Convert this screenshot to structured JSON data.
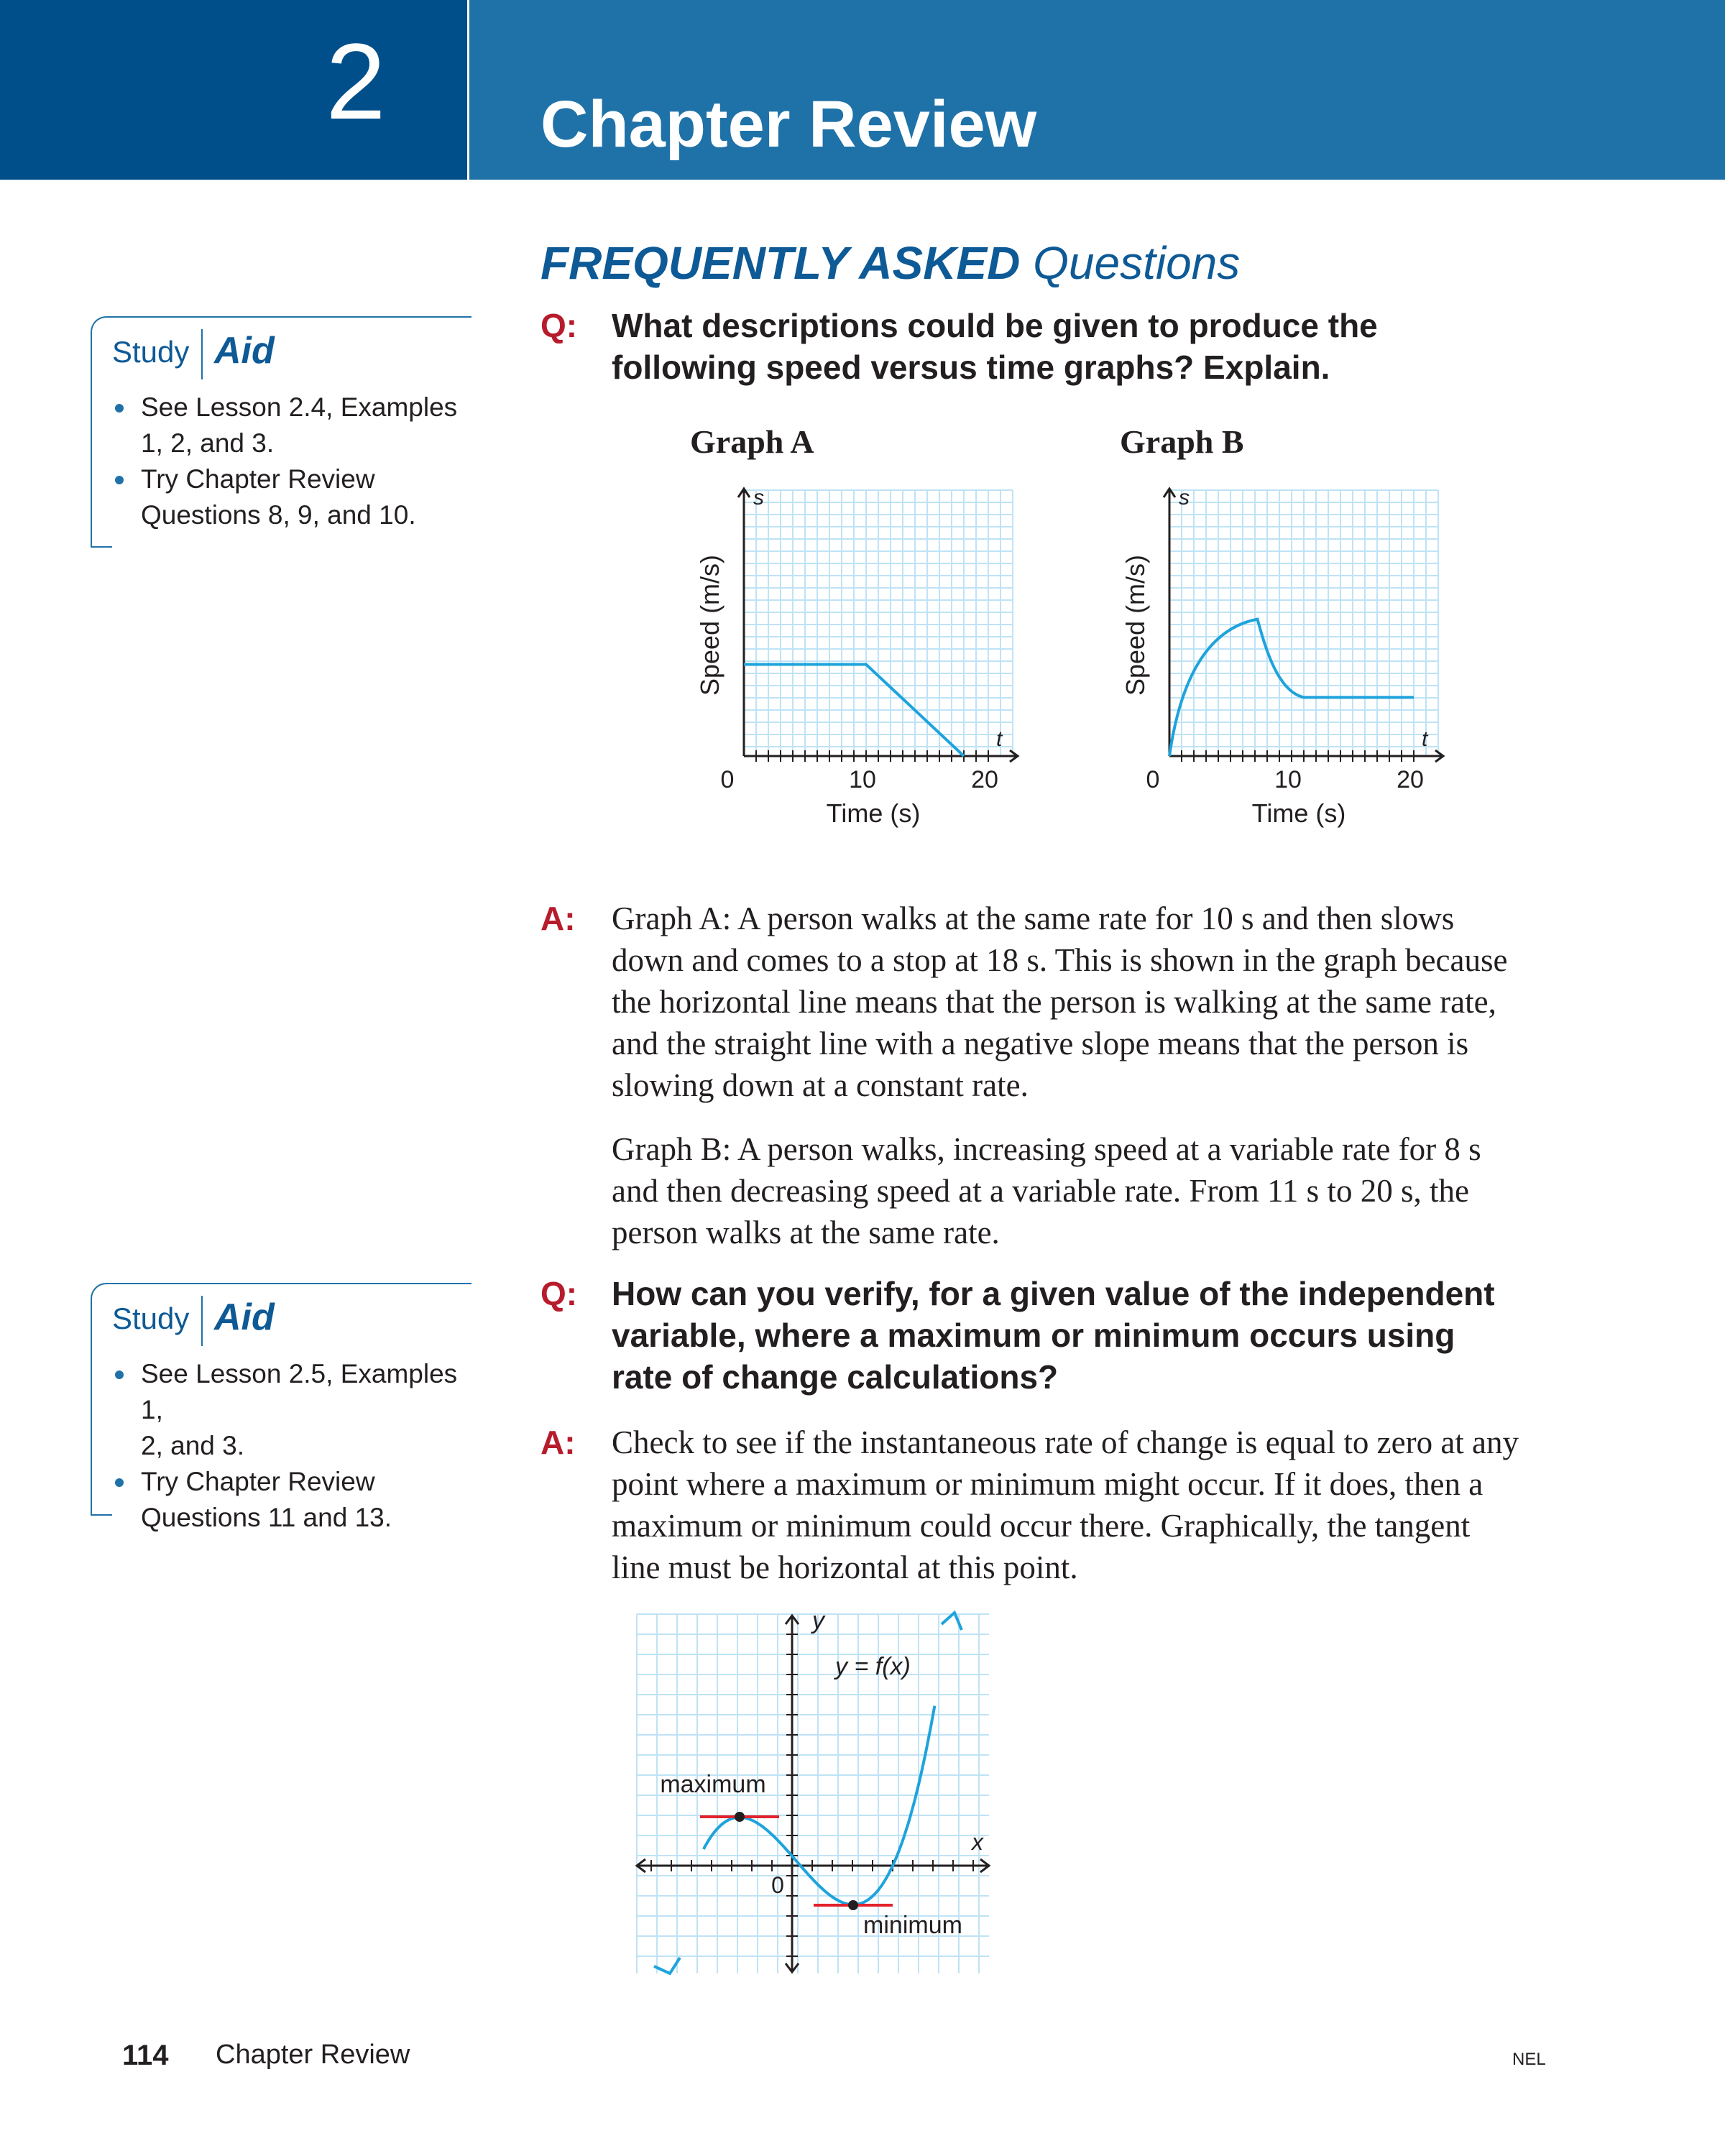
{
  "header": {
    "chapter_number": "2",
    "title": "Chapter Review"
  },
  "faq": {
    "heading_bold": "FREQUENTLY ASKED",
    "heading_rest": "Questions"
  },
  "labels": {
    "q": "Q:",
    "a": "A:"
  },
  "study_aids": [
    {
      "study": "Study",
      "aid": "Aid",
      "items": [
        {
          "line1": "See Lesson 2.4, Examples",
          "line2": "1, 2, and 3."
        },
        {
          "line1": "Try Chapter Review",
          "line2": "Questions 8, 9, and 10."
        }
      ]
    },
    {
      "study": "Study",
      "aid": "Aid",
      "items": [
        {
          "line1": "See Lesson 2.5, Examples 1,",
          "line2": "2, and 3."
        },
        {
          "line1": "Try Chapter Review",
          "line2": "Questions 11 and 13."
        }
      ]
    }
  ],
  "qa1": {
    "question_lines": [
      "What descriptions could be given to produce the",
      "following speed versus time graphs? Explain."
    ],
    "answer_para1": [
      "Graph A: A person walks at the same rate for 10 s and then slows",
      "down and comes to a stop at 18 s. This is shown in the graph because",
      "the horizontal line means that the person is walking at the same rate,",
      "and the straight line with a negative slope means that the person is",
      "slowing down at a constant rate."
    ],
    "answer_para2": [
      "Graph B: A person walks, increasing speed at a variable rate for 8 s",
      "and then decreasing speed at a variable rate. From 11 s to 20 s, the",
      "person walks at the same rate."
    ]
  },
  "qa2": {
    "question_lines": [
      "How can you verify, for a given value of the independent",
      "variable, where a maximum or minimum occurs using",
      "rate of change calculations?"
    ],
    "answer_lines": [
      "Check to see if the instantaneous rate of change is equal to zero at any",
      "point where a maximum or minimum might occur. If it does, then a",
      "maximum or minimum could occur there. Graphically, the tangent",
      "line must be horizontal at this point."
    ]
  },
  "graph_a": {
    "title": "Graph A",
    "y_axis_letter": "s",
    "x_axis_letter": "t",
    "y_label": "Speed (m/s)",
    "x_label": "Time (s)",
    "tick_labels": [
      "0",
      "10",
      "20"
    ],
    "color": "#1ea3dc"
  },
  "graph_b": {
    "title": "Graph B",
    "y_axis_letter": "s",
    "x_axis_letter": "t",
    "y_label": "Speed (m/s)",
    "x_label": "Time (s)",
    "tick_labels": [
      "0",
      "10",
      "20"
    ],
    "color": "#1ea3dc"
  },
  "graph_c": {
    "y_axis_letter": "y",
    "x_axis_letter": "x",
    "function_label": "y = f(x)",
    "origin_label": "0",
    "maximum_label": "maximum",
    "minimum_label": "minimum",
    "curve_color": "#1ea3dc",
    "tangent_color": "#e2232b"
  },
  "footer": {
    "page_number": "114",
    "title": "Chapter Review",
    "publisher": "NEL"
  }
}
